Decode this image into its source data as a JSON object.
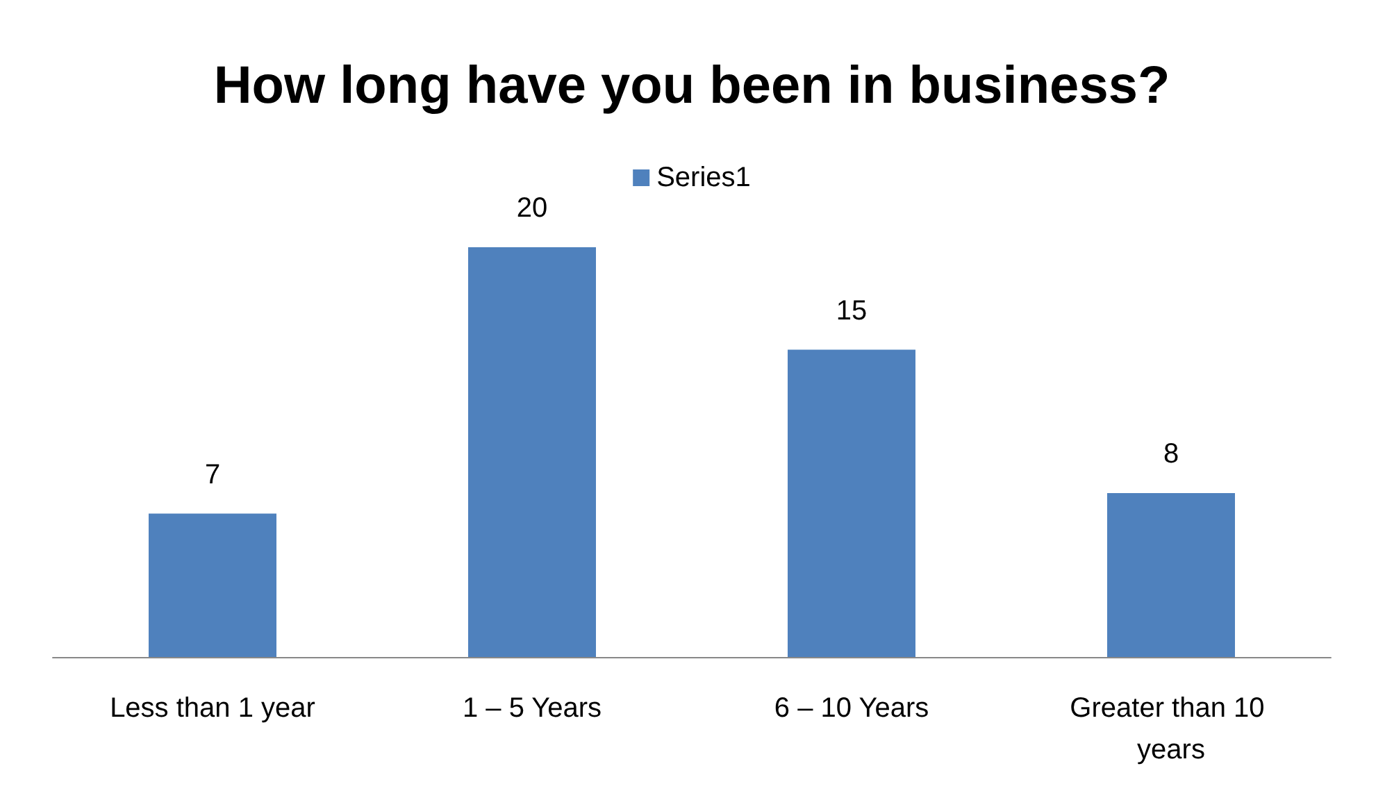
{
  "chart_data": {
    "type": "bar",
    "title": "How long have you been in business?",
    "categories": [
      "Less than 1 year",
      "1 – 5 Years",
      "6 – 10 Years",
      "Greater than 10 years"
    ],
    "series": [
      {
        "name": "Series1",
        "color": "#4f81bd",
        "values": [
          7,
          20,
          15,
          8
        ]
      }
    ],
    "data_labels": true,
    "legend": "top",
    "grid": false
  }
}
